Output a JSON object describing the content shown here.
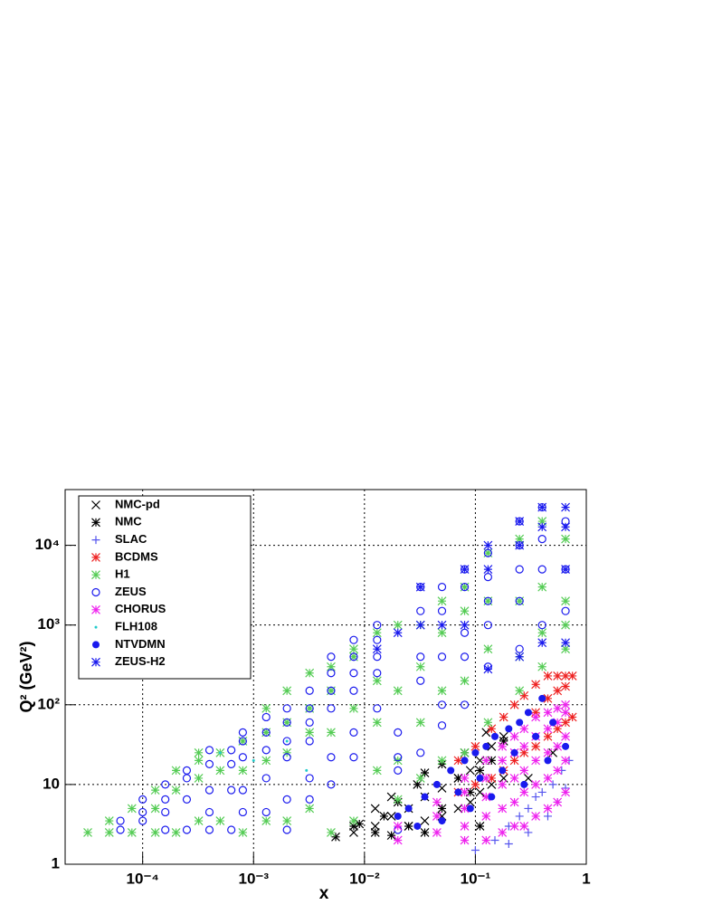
{
  "chart_data": {
    "type": "scatter",
    "x_label": "x",
    "y_label": "Q² (GeV²)",
    "xlog": true,
    "ylog": true,
    "grid": true,
    "legend": "top-left",
    "xlim": [
      2e-05,
      1
    ],
    "ylim": [
      1,
      50000
    ],
    "xticks": [
      {
        "value": 0.0001,
        "label": "10⁻⁴"
      },
      {
        "value": 0.001,
        "label": "10⁻³"
      },
      {
        "value": 0.01,
        "label": "10⁻²"
      },
      {
        "value": 0.1,
        "label": "10⁻¹"
      },
      1
    ],
    "yticks": [
      1,
      10,
      {
        "value": 100,
        "label": "10²"
      },
      {
        "value": 1000,
        "label": "10³"
      },
      {
        "value": 10000,
        "label": "10⁴"
      }
    ],
    "series": [
      {
        "name": "NMC-pd",
        "color": "#000000",
        "marker": "cross",
        "x": [
          0.008,
          0.0125,
          0.0175,
          0.025,
          0.035,
          0.05,
          0.07,
          0.09,
          0.11,
          0.14,
          0.18,
          0.0125,
          0.0175,
          0.025,
          0.035,
          0.05,
          0.07,
          0.09,
          0.11,
          0.14,
          0.18,
          0.125,
          0.3,
          0.5
        ],
        "values": [
          2.5,
          3,
          4,
          5,
          7,
          9,
          12,
          15,
          20,
          30,
          40,
          5,
          7,
          3,
          3.5,
          4,
          5,
          6,
          8,
          10,
          12,
          45,
          12,
          25
        ]
      },
      {
        "name": "NMC",
        "color": "#000000",
        "marker": "asterisk",
        "x": [
          0.0055,
          0.008,
          0.009,
          0.0125,
          0.015,
          0.02,
          0.025,
          0.03,
          0.035,
          0.05,
          0.05,
          0.07,
          0.08,
          0.09,
          0.11,
          0.11,
          0.14,
          0.18,
          0.0175,
          0.035
        ],
        "values": [
          2.2,
          3,
          3.2,
          2.5,
          4,
          6,
          3,
          10,
          14,
          5,
          18,
          12,
          25,
          8,
          15,
          3,
          20,
          35,
          2.3,
          2.5
        ]
      },
      {
        "name": "SLAC",
        "color": "#5555ee",
        "marker": "plus",
        "x": [
          0.1,
          0.15,
          0.2,
          0.25,
          0.3,
          0.35,
          0.4,
          0.5,
          0.6,
          0.7,
          0.2,
          0.3,
          0.45,
          0.55,
          0.65
        ],
        "values": [
          1.5,
          2,
          3,
          4,
          5,
          7,
          8,
          10,
          15,
          20,
          1.8,
          2.5,
          4,
          6,
          9
        ]
      },
      {
        "name": "BCDMS",
        "color": "#ee2222",
        "marker": "asterisk",
        "x": [
          0.07,
          0.07,
          0.1,
          0.1,
          0.14,
          0.14,
          0.18,
          0.18,
          0.225,
          0.225,
          0.275,
          0.275,
          0.35,
          0.35,
          0.45,
          0.45,
          0.55,
          0.55,
          0.65,
          0.65,
          0.75,
          0.75,
          0.35,
          0.45,
          0.55,
          0.65
        ],
        "values": [
          8,
          20,
          10,
          30,
          12,
          50,
          15,
          70,
          20,
          100,
          25,
          130,
          30,
          180,
          40,
          230,
          50,
          230,
          60,
          230,
          70,
          230,
          80,
          120,
          150,
          170
        ]
      },
      {
        "name": "H1",
        "color": "#55cc55",
        "marker": "asterisk",
        "x": [
          3.2e-05,
          5e-05,
          5e-05,
          8e-05,
          8e-05,
          0.00013,
          0.00013,
          0.00013,
          0.0002,
          0.0002,
          0.0002,
          0.00032,
          0.00032,
          0.00032,
          0.00032,
          0.0005,
          0.0005,
          0.0005,
          0.0008,
          0.0008,
          0.0008,
          0.0013,
          0.0013,
          0.0013,
          0.0013,
          0.002,
          0.002,
          0.002,
          0.002,
          0.0032,
          0.0032,
          0.0032,
          0.0032,
          0.005,
          0.005,
          0.005,
          0.005,
          0.008,
          0.008,
          0.008,
          0.008,
          0.013,
          0.013,
          0.013,
          0.013,
          0.02,
          0.02,
          0.02,
          0.02,
          0.032,
          0.032,
          0.032,
          0.032,
          0.05,
          0.05,
          0.05,
          0.05,
          0.08,
          0.08,
          0.08,
          0.08,
          0.13,
          0.13,
          0.13,
          0.13,
          0.25,
          0.25,
          0.25,
          0.25,
          0.4,
          0.4,
          0.4,
          0.4,
          0.65,
          0.65,
          0.65,
          0.65
        ],
        "values": [
          2.5,
          2.5,
          3.5,
          2.5,
          5,
          2.5,
          5,
          8.5,
          2.5,
          8.5,
          15,
          3.5,
          12,
          20,
          25,
          3.5,
          15,
          25,
          2.5,
          15,
          35,
          3.5,
          20,
          45,
          90,
          3.5,
          25,
          60,
          150,
          5,
          45,
          90,
          250,
          2.5,
          45,
          150,
          300,
          3.5,
          90,
          400,
          500,
          15,
          60,
          200,
          800,
          6.5,
          20,
          150,
          1000,
          12,
          60,
          300,
          1000,
          20,
          150,
          800,
          2000,
          25,
          200,
          1500,
          3000,
          60,
          500,
          2000,
          8000,
          150,
          400,
          2000,
          12000,
          300,
          800,
          3000,
          20000,
          500,
          1000,
          2000,
          12000
        ]
      },
      {
        "name": "ZEUS",
        "color": "#1a1aee",
        "marker": "circle",
        "x": [
          6.3e-05,
          6.3e-05,
          0.0001,
          0.0001,
          0.0001,
          0.00016,
          0.00016,
          0.00016,
          0.00016,
          0.00025,
          0.00025,
          0.00025,
          0.00025,
          0.0004,
          0.0004,
          0.0004,
          0.0004,
          0.0004,
          0.00063,
          0.00063,
          0.00063,
          0.00063,
          0.0008,
          0.0008,
          0.0008,
          0.0008,
          0.0008,
          0.0013,
          0.0013,
          0.0013,
          0.0013,
          0.0013,
          0.002,
          0.002,
          0.002,
          0.002,
          0.002,
          0.002,
          0.0032,
          0.0032,
          0.0032,
          0.0032,
          0.0032,
          0.0032,
          0.005,
          0.005,
          0.005,
          0.005,
          0.005,
          0.005,
          0.008,
          0.008,
          0.008,
          0.008,
          0.008,
          0.008,
          0.013,
          0.013,
          0.013,
          0.013,
          0.013,
          0.02,
          0.02,
          0.02,
          0.02,
          0.032,
          0.032,
          0.032,
          0.032,
          0.032,
          0.05,
          0.05,
          0.05,
          0.05,
          0.05,
          0.08,
          0.08,
          0.08,
          0.08,
          0.08,
          0.13,
          0.13,
          0.13,
          0.13,
          0.13,
          0.25,
          0.25,
          0.25,
          0.25,
          0.25,
          0.4,
          0.4,
          0.4,
          0.4,
          0.65,
          0.65,
          0.65
        ],
        "values": [
          2.7,
          3.5,
          3.5,
          4.5,
          6.5,
          2.7,
          4.5,
          6.5,
          10,
          2.7,
          6.5,
          12,
          15,
          2.7,
          4.5,
          8.5,
          18,
          27,
          2.7,
          8.5,
          18,
          27,
          4.5,
          8.5,
          22,
          35,
          45,
          4.5,
          12,
          27,
          45,
          70,
          2.7,
          6.5,
          22,
          35,
          60,
          90,
          6.5,
          12,
          35,
          60,
          90,
          150,
          10,
          22,
          90,
          150,
          250,
          400,
          22,
          45,
          150,
          250,
          400,
          650,
          90,
          250,
          400,
          650,
          1000,
          2.7,
          15,
          22,
          45,
          25,
          200,
          400,
          1500,
          3000,
          55,
          100,
          400,
          1500,
          3000,
          100,
          400,
          800,
          3000,
          5000,
          300,
          1000,
          2000,
          4000,
          8000,
          500,
          2000,
          5000,
          10000,
          20000,
          1000,
          5000,
          12000,
          30000,
          1500,
          5000,
          20000
        ]
      },
      {
        "name": "CHORUS",
        "color": "#ee22ee",
        "marker": "asterisk",
        "x": [
          0.02,
          0.02,
          0.045,
          0.045,
          0.045,
          0.08,
          0.08,
          0.08,
          0.08,
          0.08,
          0.125,
          0.125,
          0.125,
          0.125,
          0.125,
          0.175,
          0.175,
          0.175,
          0.175,
          0.175,
          0.225,
          0.225,
          0.225,
          0.225,
          0.225,
          0.275,
          0.275,
          0.275,
          0.275,
          0.275,
          0.35,
          0.35,
          0.35,
          0.35,
          0.35,
          0.45,
          0.45,
          0.45,
          0.45,
          0.45,
          0.55,
          0.55,
          0.55,
          0.55,
          0.55,
          0.65,
          0.65,
          0.65,
          0.65,
          0.65
        ],
        "values": [
          2,
          3,
          2.5,
          4,
          6,
          2,
          3,
          5,
          8,
          12,
          2,
          4,
          7,
          12,
          20,
          2.5,
          5,
          10,
          20,
          30,
          3,
          6,
          12,
          25,
          40,
          3,
          8,
          15,
          30,
          50,
          4,
          10,
          20,
          40,
          70,
          5,
          12,
          25,
          50,
          80,
          6,
          15,
          30,
          60,
          90,
          8,
          20,
          40,
          80,
          100
        ]
      },
      {
        "name": "FLH108",
        "color": "#22cccc",
        "marker": "dot",
        "x": [
          0.0005,
          0.001,
          0.002,
          0.003
        ],
        "values": [
          25,
          20,
          35,
          15
        ]
      },
      {
        "name": "NTVDMN",
        "color": "#1a1aee",
        "marker": "disc",
        "x": [
          0.02,
          0.025,
          0.03,
          0.035,
          0.045,
          0.05,
          0.06,
          0.07,
          0.08,
          0.09,
          0.1,
          0.11,
          0.125,
          0.14,
          0.15,
          0.175,
          0.2,
          0.225,
          0.25,
          0.275,
          0.3,
          0.35,
          0.4,
          0.45,
          0.5,
          0.65
        ],
        "values": [
          4,
          5,
          3,
          7,
          10,
          3.5,
          15,
          8,
          20,
          5,
          25,
          12,
          30,
          7,
          40,
          15,
          50,
          25,
          60,
          10,
          80,
          40,
          120,
          20,
          60,
          30
        ]
      },
      {
        "name": "ZEUS-H2",
        "color": "#1a1aee",
        "marker": "asterisk",
        "x": [
          0.032,
          0.08,
          0.13,
          0.25,
          0.4,
          0.65,
          0.65,
          0.65,
          0.4,
          0.25,
          0.13,
          0.08,
          0.05,
          0.032,
          0.02,
          0.013,
          0.13,
          0.25,
          0.4,
          0.65
        ],
        "values": [
          3000,
          5000,
          10000,
          20000,
          30000,
          30000,
          17000,
          5000,
          17000,
          10000,
          5000,
          1000,
          1000,
          1000,
          800,
          500,
          280,
          400,
          600,
          600
        ]
      }
    ]
  }
}
